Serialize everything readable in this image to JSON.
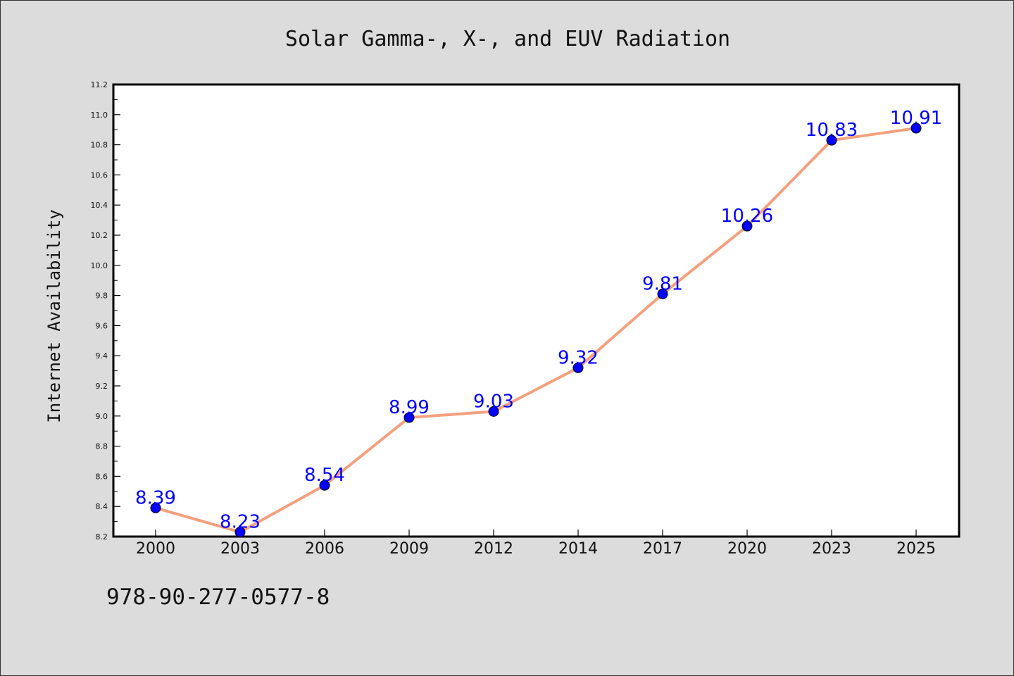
{
  "chart_data": {
    "type": "line",
    "title": "Solar Gamma-, X-, and EUV Radiation",
    "xlabel": "",
    "ylabel": "Internet Availability",
    "categories": [
      "2000",
      "2003",
      "2006",
      "2009",
      "2012",
      "2014",
      "2017",
      "2020",
      "2023",
      "2025"
    ],
    "values": [
      8.39,
      8.23,
      8.54,
      8.99,
      9.03,
      9.32,
      9.81,
      10.26,
      10.83,
      10.91
    ],
    "data_labels": [
      "8.39",
      "8.23",
      "8.54",
      "8.99",
      "9.03",
      "9.32",
      "9.81",
      "10.26",
      "10.83",
      "10.91"
    ],
    "ylim": [
      8.2,
      11.2
    ],
    "yticks": [
      "8.2",
      "8.4",
      "8.6",
      "8.8",
      "9.0",
      "9.2",
      "9.4",
      "9.6",
      "9.8",
      "10.0",
      "10.2",
      "10.4",
      "10.6",
      "10.8",
      "11.0",
      "11.2"
    ],
    "grid": false,
    "legend": "none",
    "line_color": "#f4a07e",
    "marker_color": "#0000ff",
    "label_color": "#0000ff"
  },
  "footnote": "978-90-277-0577-8"
}
